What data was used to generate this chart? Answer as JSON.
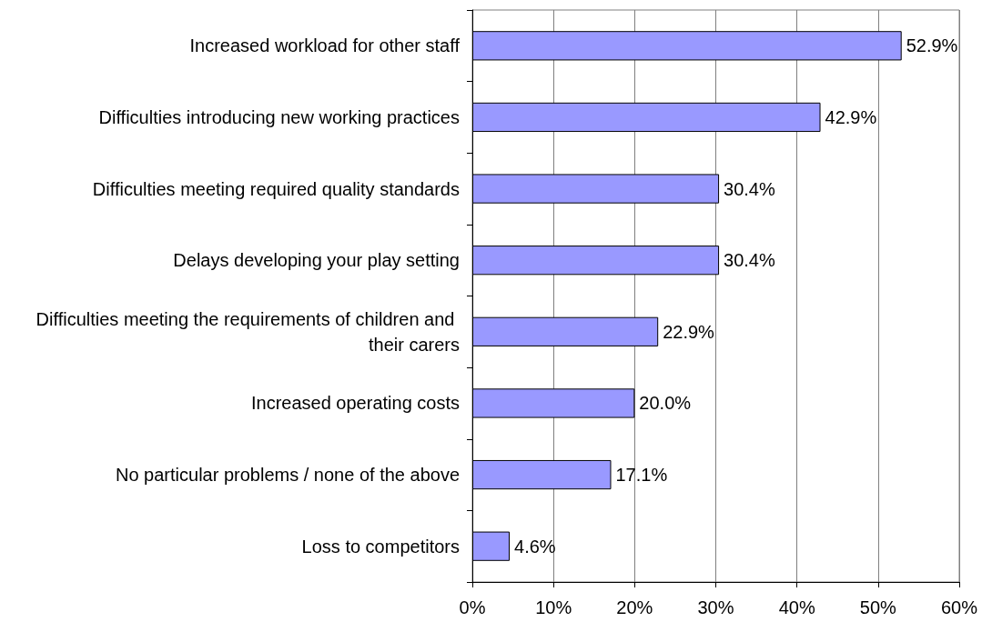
{
  "chart_data": {
    "type": "bar",
    "orientation": "horizontal",
    "categories": [
      "Increased workload for other staff",
      "Difficulties introducing new working practices",
      "Difficulties meeting required quality standards",
      "Delays developing your play setting",
      "Difficulties meeting the requirements of children and their carers",
      "Increased operating costs",
      "No particular problems / none of the above",
      "Loss to competitors"
    ],
    "values": [
      52.9,
      42.9,
      30.4,
      30.4,
      22.9,
      20.0,
      17.1,
      4.6
    ],
    "value_labels": [
      "52.9%",
      "42.9%",
      "30.4%",
      "30.4%",
      "22.9%",
      "20.0%",
      "17.1%",
      "4.6%"
    ],
    "color": "#9999ff",
    "xlim": [
      0,
      60
    ],
    "xticks": [
      {
        "value": 0,
        "label": "0%"
      },
      {
        "value": 10,
        "label": "10%"
      },
      {
        "value": 20,
        "label": "20%"
      },
      {
        "value": 30,
        "label": "30%"
      },
      {
        "value": 40,
        "label": "40%"
      },
      {
        "value": 50,
        "label": "50%"
      },
      {
        "value": 60,
        "label": "60%"
      }
    ],
    "grid": "x"
  }
}
